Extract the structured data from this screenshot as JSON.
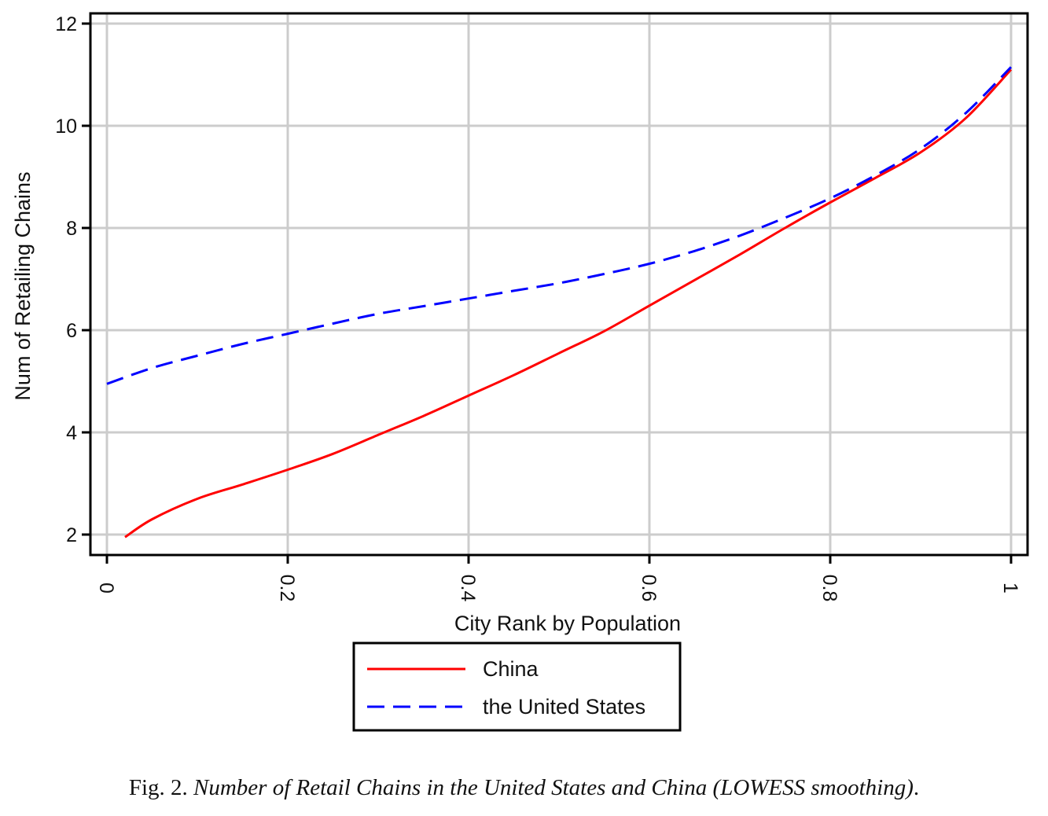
{
  "chart_data": {
    "type": "line",
    "xlabel": "City Rank by Population",
    "ylabel": "Num of Retailing Chains",
    "xlim": [
      0,
      1
    ],
    "ylim": [
      1.6,
      12.2
    ],
    "x_ticks": [
      "0",
      "0.2",
      "0.4",
      "0.6",
      "0.8",
      "1"
    ],
    "x_tick_values": [
      0,
      0.2,
      0.4,
      0.6,
      0.8,
      1
    ],
    "y_ticks": [
      "2",
      "4",
      "6",
      "8",
      "10",
      "12"
    ],
    "y_tick_values": [
      2,
      4,
      6,
      8,
      10,
      12
    ],
    "grid": true,
    "legend_position": "bottom-center",
    "series": [
      {
        "name": "China",
        "color": "#ff0000",
        "style": "solid",
        "x": [
          0.02,
          0.05,
          0.1,
          0.15,
          0.2,
          0.25,
          0.3,
          0.35,
          0.4,
          0.45,
          0.5,
          0.55,
          0.6,
          0.65,
          0.7,
          0.75,
          0.8,
          0.85,
          0.9,
          0.95,
          1.0
        ],
        "y": [
          1.95,
          2.3,
          2.7,
          2.98,
          3.27,
          3.58,
          3.95,
          4.32,
          4.72,
          5.12,
          5.55,
          5.98,
          6.48,
          6.98,
          7.48,
          8.0,
          8.5,
          8.98,
          9.48,
          10.15,
          11.1
        ]
      },
      {
        "name": "the United States",
        "color": "#0000ff",
        "style": "dashed",
        "x": [
          0.0,
          0.05,
          0.1,
          0.15,
          0.2,
          0.25,
          0.3,
          0.35,
          0.4,
          0.45,
          0.5,
          0.55,
          0.6,
          0.65,
          0.7,
          0.75,
          0.8,
          0.85,
          0.9,
          0.95,
          1.0
        ],
        "y": [
          4.95,
          5.26,
          5.5,
          5.73,
          5.93,
          6.13,
          6.32,
          6.47,
          6.62,
          6.77,
          6.92,
          7.1,
          7.3,
          7.55,
          7.85,
          8.2,
          8.58,
          9.03,
          9.55,
          10.25,
          11.15
        ]
      }
    ]
  },
  "caption": {
    "prefix": "Fig. 2. ",
    "title": "Number of Retail Chains in the United States and China (LOWESS smoothing)",
    "suffix": "."
  }
}
